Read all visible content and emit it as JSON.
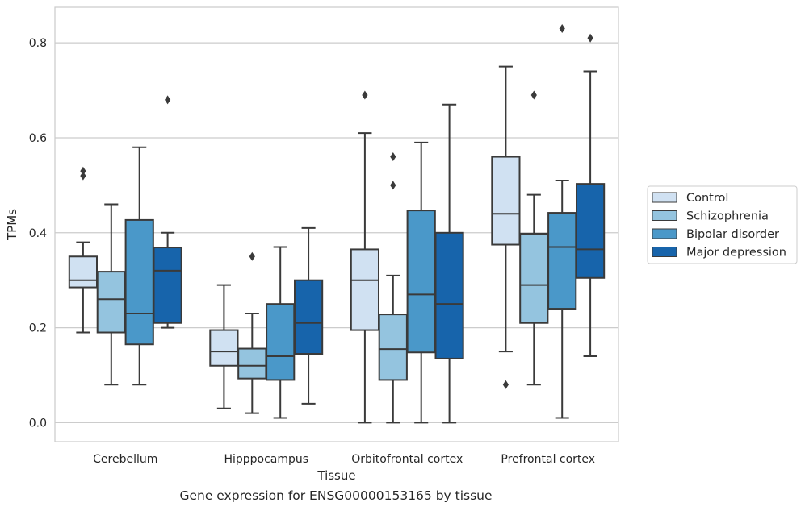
{
  "caption": "Gene expression for ENSG00000153165 by tissue",
  "chart_data": {
    "type": "box",
    "xlabel": "Tissue",
    "ylabel": "TPMs",
    "ylim": [
      -0.04,
      0.875
    ],
    "yticks": [
      0.0,
      0.2,
      0.4,
      0.6,
      0.8
    ],
    "ytick_labels": [
      "0.0",
      "0.2",
      "0.4",
      "0.6",
      "0.8"
    ],
    "grid": "horizontal",
    "legend_position": "right",
    "categories": [
      "Cerebellum",
      "Hipppocampus",
      "Orbitofrontal cortex",
      "Prefrontal cortex"
    ],
    "series": [
      {
        "name": "Control",
        "color": "#d0e1f2",
        "boxes": [
          {
            "whislo": 0.19,
            "q1": 0.285,
            "med": 0.3,
            "q3": 0.35,
            "whishi": 0.38,
            "fliers": [
              0.52,
              0.53
            ]
          },
          {
            "whislo": 0.03,
            "q1": 0.12,
            "med": 0.15,
            "q3": 0.195,
            "whishi": 0.29,
            "fliers": []
          },
          {
            "whislo": 0.0,
            "q1": 0.195,
            "med": 0.3,
            "q3": 0.365,
            "whishi": 0.61,
            "fliers": [
              0.69
            ]
          },
          {
            "whislo": 0.15,
            "q1": 0.375,
            "med": 0.44,
            "q3": 0.56,
            "whishi": 0.75,
            "fliers": [
              0.08
            ]
          }
        ]
      },
      {
        "name": "Schizophrenia",
        "color": "#94c4df",
        "boxes": [
          {
            "whislo": 0.08,
            "q1": 0.19,
            "med": 0.26,
            "q3": 0.318,
            "whishi": 0.46,
            "fliers": []
          },
          {
            "whislo": 0.02,
            "q1": 0.093,
            "med": 0.12,
            "q3": 0.156,
            "whishi": 0.23,
            "fliers": [
              0.35
            ]
          },
          {
            "whislo": 0.0,
            "q1": 0.09,
            "med": 0.155,
            "q3": 0.228,
            "whishi": 0.31,
            "fliers": [
              0.5,
              0.56
            ]
          },
          {
            "whislo": 0.08,
            "q1": 0.21,
            "med": 0.29,
            "q3": 0.398,
            "whishi": 0.48,
            "fliers": [
              0.69
            ]
          }
        ]
      },
      {
        "name": "Bipolar disorder",
        "color": "#4a98c9",
        "boxes": [
          {
            "whislo": 0.08,
            "q1": 0.165,
            "med": 0.23,
            "q3": 0.427,
            "whishi": 0.58,
            "fliers": []
          },
          {
            "whislo": 0.01,
            "q1": 0.09,
            "med": 0.14,
            "q3": 0.25,
            "whishi": 0.37,
            "fliers": []
          },
          {
            "whislo": 0.0,
            "q1": 0.148,
            "med": 0.27,
            "q3": 0.447,
            "whishi": 0.59,
            "fliers": []
          },
          {
            "whislo": 0.01,
            "q1": 0.24,
            "med": 0.37,
            "q3": 0.442,
            "whishi": 0.51,
            "fliers": [
              0.83
            ]
          }
        ]
      },
      {
        "name": "Major depression",
        "color": "#1764ab",
        "boxes": [
          {
            "whislo": 0.2,
            "q1": 0.21,
            "med": 0.32,
            "q3": 0.369,
            "whishi": 0.4,
            "fliers": [
              0.68
            ]
          },
          {
            "whislo": 0.04,
            "q1": 0.145,
            "med": 0.21,
            "q3": 0.3,
            "whishi": 0.41,
            "fliers": []
          },
          {
            "whislo": 0.0,
            "q1": 0.135,
            "med": 0.25,
            "q3": 0.4,
            "whishi": 0.67,
            "fliers": []
          },
          {
            "whislo": 0.14,
            "q1": 0.305,
            "med": 0.365,
            "q3": 0.503,
            "whishi": 0.74,
            "fliers": [
              0.81
            ]
          }
        ]
      }
    ]
  }
}
